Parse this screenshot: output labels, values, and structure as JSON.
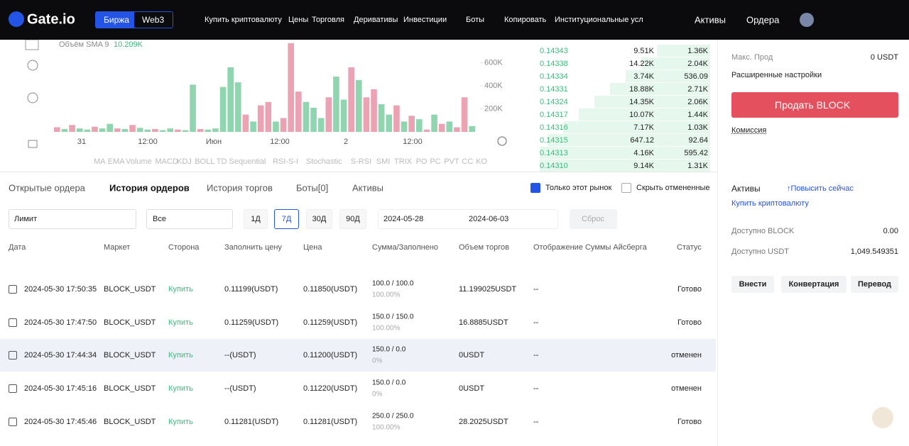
{
  "nav": {
    "logo": "Gate.io",
    "tabs": [
      "Биржа",
      "Web3"
    ],
    "menu": [
      "Купить криптовалюту",
      "Цены",
      "Торговля",
      "Деривативы",
      "Инвестиции",
      "Боты",
      "Копировать",
      "Институциональные усл"
    ],
    "right": [
      "Активы",
      "Ордера"
    ]
  },
  "chart_data": {
    "type": "bar",
    "sma_label": "Объём SMA 9",
    "sma_value": "10.209K",
    "ylim": [
      0,
      800000
    ],
    "yticks": [
      {
        "value": 200000,
        "label": "200K"
      },
      {
        "value": 400000,
        "label": "400K"
      },
      {
        "value": 600000,
        "label": "600K"
      }
    ],
    "x_labels": [
      "31",
      "12:00",
      "Июн",
      "12:00",
      "2",
      "12:00"
    ],
    "indicators": [
      "MA",
      "EMA",
      "Volume",
      "MACD",
      "KDJ",
      "BOLL",
      "TD Sequential",
      "RSI-S-I",
      "Stochastic",
      "S-RSI",
      "SMI",
      "TRIX",
      "PO",
      "PC",
      "PVT",
      "CC",
      "KO"
    ],
    "series": [
      {
        "color": "#8fd6b0",
        "values": [
          null,
          25000,
          null,
          30000,
          20000,
          null,
          30000,
          70000,
          null,
          25000,
          null,
          35000,
          20000,
          null,
          15000,
          30000,
          null,
          15000,
          410000,
          null,
          20000,
          30000,
          390000,
          560000,
          430000,
          null,
          90000,
          null,
          null,
          90000,
          null,
          null,
          null,
          260000,
          210000,
          120000,
          null,
          480000,
          280000,
          null,
          450000,
          null,
          null,
          240000,
          150000,
          null,
          90000,
          null,
          110000,
          null,
          150000,
          null,
          90000,
          null,
          null,
          50000
        ]
      },
      {
        "color": "#eba3b3",
        "values": [
          40000,
          null,
          60000,
          null,
          null,
          45000,
          null,
          null,
          30000,
          null,
          60000,
          null,
          null,
          25000,
          null,
          null,
          20000,
          null,
          null,
          25000,
          null,
          null,
          null,
          null,
          null,
          150000,
          null,
          230000,
          260000,
          null,
          120000,
          770000,
          350000,
          null,
          null,
          null,
          300000,
          null,
          null,
          560000,
          null,
          300000,
          370000,
          null,
          null,
          230000,
          null,
          140000,
          null,
          20000,
          null,
          70000,
          null,
          40000,
          300000,
          null
        ]
      }
    ]
  },
  "orderbook": {
    "rows": [
      [
        "0.14343",
        "9.51K",
        "1.36K"
      ],
      [
        "0.14338",
        "14.22K",
        "2.04K"
      ],
      [
        "0.14334",
        "3.74K",
        "536.09"
      ],
      [
        "0.14331",
        "18.88K",
        "2.71K"
      ],
      [
        "0.14324",
        "14.35K",
        "2.06K"
      ],
      [
        "0.14317",
        "10.07K",
        "1.44K"
      ],
      [
        "0.14316",
        "7.17K",
        "1.03K"
      ],
      [
        "0.14315",
        "647.12",
        "92.64"
      ],
      [
        "0.14313",
        "4.16K",
        "595.42"
      ],
      [
        "0.14310",
        "9.14K",
        "1.31K"
      ]
    ]
  },
  "trade_panel": {
    "max_label": "Макс. Прод",
    "max_value": "0 USDT",
    "advanced": "Расширенные настройки",
    "sell_button": "Продать BLOCK",
    "fee": "Комиссия"
  },
  "assets": {
    "title": "Активы",
    "upgrade": "↑Повысить сейчас",
    "buy": "Купить криптовалюту",
    "rows": [
      [
        "Доступно BLOCK",
        "0.00"
      ],
      [
        "Доступно USDT",
        "1,049.549351"
      ]
    ],
    "buttons": [
      "Внести",
      "Конвертация",
      "Перевод"
    ]
  },
  "orders": {
    "tabs": [
      "Открытые ордера",
      "История ордеров",
      "История торгов",
      "Боты[0]",
      "Активы"
    ],
    "checks": [
      "Только этот рынок",
      "Скрыть отмененные"
    ],
    "filters": {
      "type": "Лимит",
      "side": "Все",
      "periods": [
        "1Д",
        "7Д",
        "30Д",
        "90Д"
      ],
      "from": "2024-05-28",
      "to": "2024-06-03",
      "reset": "Сброс"
    },
    "headers": [
      "Дата",
      "Маркет",
      "Сторона",
      "Заполнить цену",
      "Цена",
      "Сумма/Заполнено",
      "Объем торгов",
      "Отображение Суммы Айсберга",
      "Статус"
    ],
    "rows": [
      [
        "2024-05-30 17:50:35",
        "BLOCK_USDT",
        "Купить",
        "0.11199(USDT)",
        "0.11850(USDT)",
        "100.0 / 100.0",
        "100.00%",
        "11.199025USDT",
        "--",
        "Готово"
      ],
      [
        "2024-05-30 17:47:50",
        "BLOCK_USDT",
        "Купить",
        "0.11259(USDT)",
        "0.11259(USDT)",
        "150.0 / 150.0",
        "100.00%",
        "16.8885USDT",
        "--",
        "Готово"
      ],
      [
        "2024-05-30 17:44:34",
        "BLOCK_USDT",
        "Купить",
        "--(USDT)",
        "0.11200(USDT)",
        "150.0 / 0.0",
        "0%",
        "0USDT",
        "--",
        "отменен"
      ],
      [
        "2024-05-30 17:45:16",
        "BLOCK_USDT",
        "Купить",
        "--(USDT)",
        "0.11220(USDT)",
        "150.0 / 0.0",
        "0%",
        "0USDT",
        "--",
        "отменен"
      ],
      [
        "2024-05-30 17:45:46",
        "BLOCK_USDT",
        "Купить",
        "0.11281(USDT)",
        "0.11281(USDT)",
        "250.0 / 250.0",
        "100.00%",
        "28.2025USDT",
        "--",
        "Готово"
      ]
    ]
  }
}
